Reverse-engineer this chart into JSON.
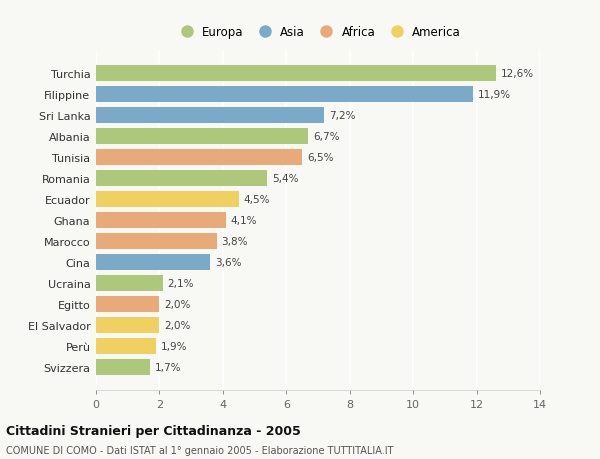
{
  "countries": [
    "Turchia",
    "Filippine",
    "Sri Lanka",
    "Albania",
    "Tunisia",
    "Romania",
    "Ecuador",
    "Ghana",
    "Marocco",
    "Cina",
    "Ucraina",
    "Egitto",
    "El Salvador",
    "Perù",
    "Svizzera"
  ],
  "values": [
    12.6,
    11.9,
    7.2,
    6.7,
    6.5,
    5.4,
    4.5,
    4.1,
    3.8,
    3.6,
    2.1,
    2.0,
    2.0,
    1.9,
    1.7
  ],
  "continents": [
    "Europa",
    "Asia",
    "Asia",
    "Europa",
    "Africa",
    "Europa",
    "America",
    "Africa",
    "Africa",
    "Asia",
    "Europa",
    "Africa",
    "America",
    "America",
    "Europa"
  ],
  "colors": {
    "Europa": "#adc87a",
    "Asia": "#7aaac8",
    "Africa": "#e8aa78",
    "America": "#f0d060"
  },
  "legend_order": [
    "Europa",
    "Asia",
    "Africa",
    "America"
  ],
  "xlim": [
    0,
    14
  ],
  "xticks": [
    0,
    2,
    4,
    6,
    8,
    10,
    12,
    14
  ],
  "title": "Cittadini Stranieri per Cittadinanza - 2005",
  "subtitle": "COMUNE DI COMO - Dati ISTAT al 1° gennaio 2005 - Elaborazione TUTTITALIA.IT",
  "background_color": "#f8f8f5",
  "grid_color": "#e8e8e8",
  "bar_height": 0.75
}
